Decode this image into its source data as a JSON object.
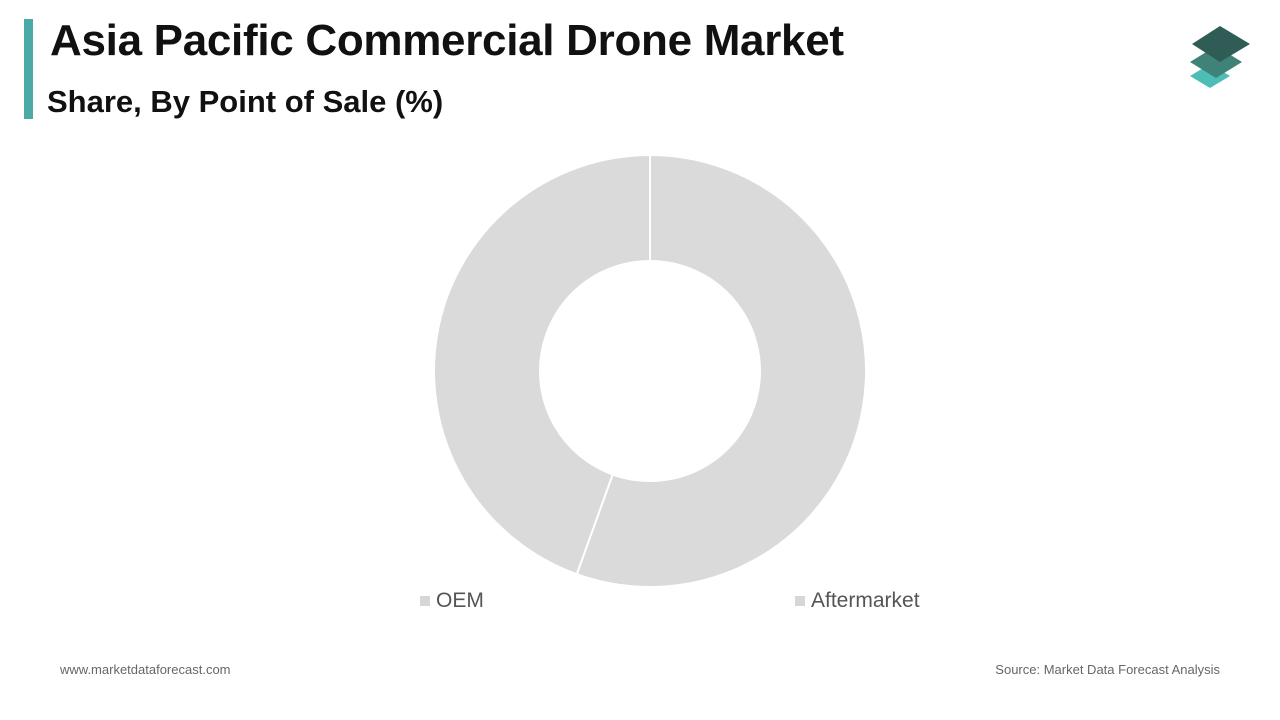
{
  "header": {
    "title": "Asia Pacific Commercial Drone Market",
    "subtitle": "Share, By Point of Sale (%)"
  },
  "colors": {
    "accent": "#4aaaa5",
    "slice": "#dadada",
    "legend_swatch": "#d6d6d6",
    "logo_top": "#2f5d55",
    "logo_mid": "#3f8277",
    "logo_bottom": "#4dbdb5"
  },
  "logo": {
    "icon": "stacked-layers-icon"
  },
  "chart_data": {
    "type": "pie",
    "variant": "donut",
    "title": "Share, By Point of Sale (%)",
    "categories": [
      "OEM",
      "Aftermarket"
    ],
    "values": [
      44.5,
      55.5
    ],
    "start_angle_deg": 0,
    "direction": "counterclockwise",
    "legend": {
      "placement": "bottom",
      "entries": [
        "OEM",
        "Aftermarket"
      ]
    }
  },
  "footer": {
    "website": "www.marketdataforecast.com",
    "source": "Source: Market Data Forecast Analysis"
  }
}
